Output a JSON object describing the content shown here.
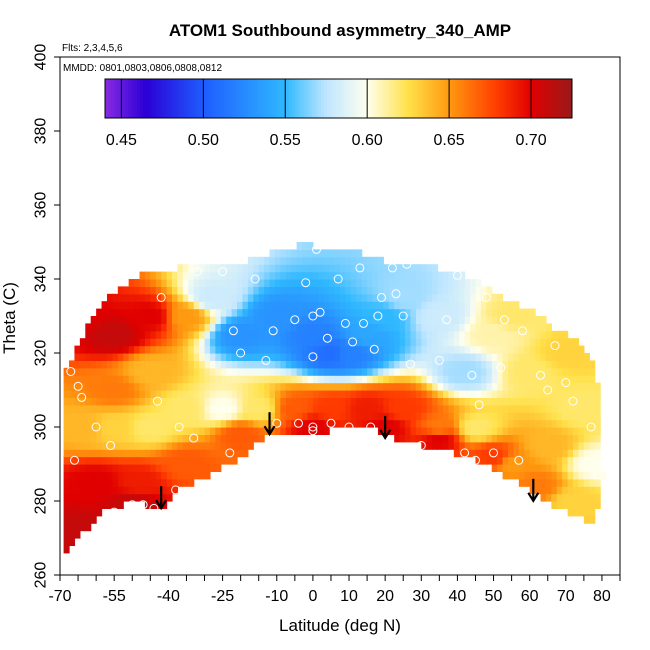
{
  "chart_data": {
    "type": "heatmap",
    "title": "ATOM1 Southbound asymmetry_340_AMP",
    "flights_note": "Flts: 2,3,4,5,6",
    "dates_note": "MMDD: 0801,0803,0806,0808,0812",
    "xlabel": "Latitude (deg N)",
    "ylabel": "Theta (C)",
    "xlim": [
      -70,
      85
    ],
    "ylim": [
      260,
      400
    ],
    "x_ticks": [
      -70,
      -55,
      -40,
      -25,
      -10,
      0,
      10,
      20,
      30,
      40,
      50,
      60,
      70,
      80
    ],
    "x_tick_labels": [
      "-70",
      "-55",
      "-40",
      "-25",
      "-10",
      "0",
      "10",
      "20",
      "30",
      "40",
      "50",
      "60",
      "70",
      "80"
    ],
    "y_ticks": [
      260,
      280,
      300,
      320,
      340,
      360,
      380,
      400
    ],
    "y_tick_labels": [
      "260",
      "280",
      "300",
      "320",
      "340",
      "360",
      "380",
      "400"
    ],
    "colorbar": {
      "range": [
        0.44,
        0.725
      ],
      "ticks": [
        0.45,
        0.5,
        0.55,
        0.6,
        0.65,
        0.7
      ],
      "tick_labels": [
        "0.45",
        "0.50",
        "0.55",
        "0.60",
        "0.65",
        "0.70"
      ],
      "stops": [
        {
          "v": 0.44,
          "color": "#8a2be2"
        },
        {
          "v": 0.465,
          "color": "#2a00d6"
        },
        {
          "v": 0.5,
          "color": "#1f5cff"
        },
        {
          "v": 0.55,
          "color": "#2fb8ff"
        },
        {
          "v": 0.575,
          "color": "#bfe6ff"
        },
        {
          "v": 0.6,
          "color": "#ffffee"
        },
        {
          "v": 0.625,
          "color": "#ffe14a"
        },
        {
          "v": 0.65,
          "color": "#ff9a10"
        },
        {
          "v": 0.68,
          "color": "#ff3a00"
        },
        {
          "v": 0.7,
          "color": "#e00000"
        },
        {
          "v": 0.725,
          "color": "#9a1a1a"
        }
      ]
    },
    "domain_top": [
      [
        -69,
        312
      ],
      [
        -68,
        316
      ],
      [
        -66,
        320
      ],
      [
        -63,
        326
      ],
      [
        -60,
        332
      ],
      [
        -56,
        336
      ],
      [
        -50,
        340
      ],
      [
        -45,
        342
      ],
      [
        -38,
        343
      ],
      [
        -30,
        343
      ],
      [
        -22,
        344
      ],
      [
        -15,
        346
      ],
      [
        -10,
        348
      ],
      [
        -5,
        349
      ],
      [
        0,
        349
      ],
      [
        10,
        348
      ],
      [
        20,
        345
      ],
      [
        30,
        344
      ],
      [
        40,
        342
      ],
      [
        45,
        340
      ],
      [
        50,
        336
      ],
      [
        55,
        334
      ],
      [
        60,
        332
      ],
      [
        65,
        328
      ],
      [
        70,
        325
      ],
      [
        75,
        322
      ],
      [
        78,
        316
      ],
      [
        79,
        310
      ],
      [
        80,
        300
      ],
      [
        80,
        290
      ],
      [
        79,
        287
      ]
    ],
    "domain_bottom": [
      [
        -69,
        266
      ],
      [
        -67,
        267
      ],
      [
        -63,
        272
      ],
      [
        -58,
        277
      ],
      [
        -50,
        280
      ],
      [
        -42,
        278
      ],
      [
        -38,
        283
      ],
      [
        -30,
        286
      ],
      [
        -20,
        292
      ],
      [
        -12,
        298
      ],
      [
        -5,
        299
      ],
      [
        0,
        298
      ],
      [
        10,
        300
      ],
      [
        18,
        299
      ],
      [
        25,
        296
      ],
      [
        35,
        294
      ],
      [
        45,
        291
      ],
      [
        55,
        286
      ],
      [
        62,
        282
      ],
      [
        68,
        278
      ],
      [
        75,
        275
      ],
      [
        78,
        273
      ],
      [
        80,
        287
      ]
    ],
    "field_nodes": [
      {
        "lat": -65,
        "theta": 330,
        "value": 0.7
      },
      {
        "lat": -55,
        "theta": 325,
        "value": 0.71
      },
      {
        "lat": -45,
        "theta": 330,
        "value": 0.7
      },
      {
        "lat": -55,
        "theta": 310,
        "value": 0.66
      },
      {
        "lat": -45,
        "theta": 315,
        "value": 0.64
      },
      {
        "lat": -35,
        "theta": 330,
        "value": 0.65
      },
      {
        "lat": -28,
        "theta": 335,
        "value": 0.58
      },
      {
        "lat": -20,
        "theta": 325,
        "value": 0.53
      },
      {
        "lat": -10,
        "theta": 330,
        "value": 0.53
      },
      {
        "lat": 0,
        "theta": 325,
        "value": 0.52
      },
      {
        "lat": 5,
        "theta": 320,
        "value": 0.51
      },
      {
        "lat": 10,
        "theta": 320,
        "value": 0.52
      },
      {
        "lat": 15,
        "theta": 325,
        "value": 0.54
      },
      {
        "lat": 20,
        "theta": 330,
        "value": 0.55
      },
      {
        "lat": 25,
        "theta": 335,
        "value": 0.57
      },
      {
        "lat": 35,
        "theta": 330,
        "value": 0.58
      },
      {
        "lat": 42,
        "theta": 315,
        "value": 0.57
      },
      {
        "lat": 50,
        "theta": 325,
        "value": 0.61
      },
      {
        "lat": 55,
        "theta": 330,
        "value": 0.62
      },
      {
        "lat": 60,
        "theta": 315,
        "value": 0.62
      },
      {
        "lat": 70,
        "theta": 320,
        "value": 0.63
      },
      {
        "lat": 75,
        "theta": 305,
        "value": 0.62
      },
      {
        "lat": 78,
        "theta": 290,
        "value": 0.6
      },
      {
        "lat": 65,
        "theta": 295,
        "value": 0.64
      },
      {
        "lat": 55,
        "theta": 290,
        "value": 0.65
      },
      {
        "lat": 45,
        "theta": 300,
        "value": 0.62
      },
      {
        "lat": 35,
        "theta": 300,
        "value": 0.66
      },
      {
        "lat": 25,
        "theta": 305,
        "value": 0.68
      },
      {
        "lat": 15,
        "theta": 305,
        "value": 0.69
      },
      {
        "lat": 5,
        "theta": 305,
        "value": 0.68
      },
      {
        "lat": -5,
        "theta": 305,
        "value": 0.67
      },
      {
        "lat": -15,
        "theta": 305,
        "value": 0.62
      },
      {
        "lat": -25,
        "theta": 305,
        "value": 0.6
      },
      {
        "lat": -35,
        "theta": 305,
        "value": 0.62
      },
      {
        "lat": -45,
        "theta": 300,
        "value": 0.62
      },
      {
        "lat": -55,
        "theta": 300,
        "value": 0.63
      },
      {
        "lat": -63,
        "theta": 300,
        "value": 0.64
      },
      {
        "lat": -60,
        "theta": 285,
        "value": 0.7
      },
      {
        "lat": -48,
        "theta": 285,
        "value": 0.69
      },
      {
        "lat": -35,
        "theta": 290,
        "value": 0.67
      },
      {
        "lat": -20,
        "theta": 298,
        "value": 0.67
      },
      {
        "lat": 0,
        "theta": 300,
        "value": 0.7
      },
      {
        "lat": 20,
        "theta": 300,
        "value": 0.7
      },
      {
        "lat": 35,
        "theta": 297,
        "value": 0.7
      },
      {
        "lat": 50,
        "theta": 292,
        "value": 0.68
      },
      {
        "lat": 62,
        "theta": 284,
        "value": 0.66
      },
      {
        "lat": -65,
        "theta": 272,
        "value": 0.71
      },
      {
        "lat": -50,
        "theta": 279,
        "value": 0.71
      },
      {
        "lat": 72,
        "theta": 280,
        "value": 0.63
      }
    ],
    "observations": [
      {
        "lat": -67,
        "theta": 315
      },
      {
        "lat": -65,
        "theta": 311
      },
      {
        "lat": -64,
        "theta": 308
      },
      {
        "lat": -66,
        "theta": 291
      },
      {
        "lat": -60,
        "theta": 300
      },
      {
        "lat": -56,
        "theta": 295
      },
      {
        "lat": -55,
        "theta": 277
      },
      {
        "lat": -50,
        "theta": 279
      },
      {
        "lat": -47,
        "theta": 279
      },
      {
        "lat": -44,
        "theta": 278
      },
      {
        "lat": -43,
        "theta": 307
      },
      {
        "lat": -42,
        "theta": 335
      },
      {
        "lat": -38,
        "theta": 283
      },
      {
        "lat": -37,
        "theta": 300
      },
      {
        "lat": -33,
        "theta": 297
      },
      {
        "lat": -32,
        "theta": 342
      },
      {
        "lat": -27,
        "theta": 286
      },
      {
        "lat": -25,
        "theta": 342
      },
      {
        "lat": -23,
        "theta": 293
      },
      {
        "lat": -22,
        "theta": 326
      },
      {
        "lat": -20,
        "theta": 320
      },
      {
        "lat": -16,
        "theta": 340
      },
      {
        "lat": -13,
        "theta": 318
      },
      {
        "lat": -11,
        "theta": 326
      },
      {
        "lat": -10,
        "theta": 301
      },
      {
        "lat": -5,
        "theta": 329
      },
      {
        "lat": -4,
        "theta": 301
      },
      {
        "lat": -2,
        "theta": 339
      },
      {
        "lat": 0,
        "theta": 319
      },
      {
        "lat": 0,
        "theta": 330
      },
      {
        "lat": 0,
        "theta": 300
      },
      {
        "lat": 0,
        "theta": 299
      },
      {
        "lat": 1,
        "theta": 348
      },
      {
        "lat": 2,
        "theta": 331
      },
      {
        "lat": 4,
        "theta": 324
      },
      {
        "lat": 5,
        "theta": 301
      },
      {
        "lat": 7,
        "theta": 340
      },
      {
        "lat": 9,
        "theta": 328
      },
      {
        "lat": 10,
        "theta": 300
      },
      {
        "lat": 11,
        "theta": 323
      },
      {
        "lat": 13,
        "theta": 343
      },
      {
        "lat": 14,
        "theta": 328
      },
      {
        "lat": 16,
        "theta": 300
      },
      {
        "lat": 17,
        "theta": 321
      },
      {
        "lat": 18,
        "theta": 330
      },
      {
        "lat": 19,
        "theta": 335
      },
      {
        "lat": 22,
        "theta": 343
      },
      {
        "lat": 23,
        "theta": 336
      },
      {
        "lat": 25,
        "theta": 330
      },
      {
        "lat": 26,
        "theta": 344
      },
      {
        "lat": 27,
        "theta": 317
      },
      {
        "lat": 30,
        "theta": 295
      },
      {
        "lat": 35,
        "theta": 318
      },
      {
        "lat": 37,
        "theta": 329
      },
      {
        "lat": 40,
        "theta": 341
      },
      {
        "lat": 42,
        "theta": 293
      },
      {
        "lat": 44,
        "theta": 314
      },
      {
        "lat": 45,
        "theta": 291
      },
      {
        "lat": 46,
        "theta": 306
      },
      {
        "lat": 48,
        "theta": 335
      },
      {
        "lat": 50,
        "theta": 293
      },
      {
        "lat": 52,
        "theta": 316
      },
      {
        "lat": 53,
        "theta": 329
      },
      {
        "lat": 57,
        "theta": 291
      },
      {
        "lat": 58,
        "theta": 326
      },
      {
        "lat": 63,
        "theta": 314
      },
      {
        "lat": 65,
        "theta": 310
      },
      {
        "lat": 67,
        "theta": 322
      },
      {
        "lat": 70,
        "theta": 312
      },
      {
        "lat": 72,
        "theta": 307
      },
      {
        "lat": 73,
        "theta": 326
      },
      {
        "lat": 77,
        "theta": 300
      },
      {
        "lat": 79,
        "theta": 287
      }
    ],
    "arrows": [
      {
        "lat": -42,
        "theta": 284
      },
      {
        "lat": -12,
        "theta": 304
      },
      {
        "lat": 20,
        "theta": 303
      },
      {
        "lat": 61,
        "theta": 286
      }
    ]
  }
}
